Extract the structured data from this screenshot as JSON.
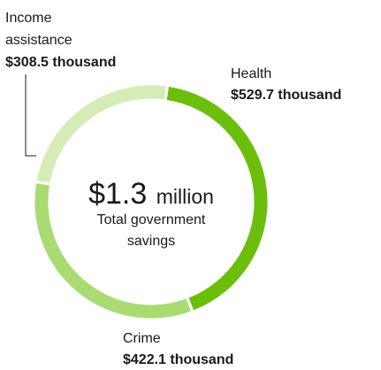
{
  "chart_data": {
    "type": "pie",
    "style": "donut",
    "center": {
      "amount": "$1.3",
      "unit": "million",
      "caption_line1": "Total government",
      "caption_line2": "savings"
    },
    "slices": [
      {
        "key": "health",
        "label": "Health",
        "value_label": "$529.7 thousand",
        "value": 529.7,
        "color": "#6cbe0c"
      },
      {
        "key": "crime",
        "label": "Crime",
        "value_label": "$422.1 thousand",
        "value": 422.1,
        "color": "#a9db72"
      },
      {
        "key": "income",
        "label_lines": [
          "Income",
          "assistance"
        ],
        "value_label": "$308.5 thousand",
        "value": 308.5,
        "color": "#d5ecb8"
      }
    ]
  }
}
